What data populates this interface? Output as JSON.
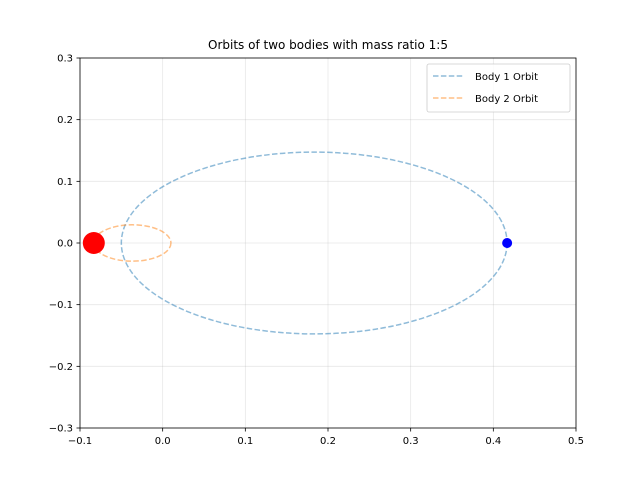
{
  "chart_data": {
    "type": "line",
    "title": "Orbits of two bodies with mass ratio 1:5",
    "xlabel": "",
    "ylabel": "",
    "xlim": [
      -0.1,
      0.5
    ],
    "ylim": [
      -0.3,
      0.3
    ],
    "xticks": [
      -0.1,
      0.0,
      0.1,
      0.2,
      0.3,
      0.4,
      0.5
    ],
    "yticks": [
      -0.3,
      -0.2,
      -0.1,
      0.0,
      0.1,
      0.2,
      0.3
    ],
    "xtick_labels": [
      "−0.1",
      "0.0",
      "0.1",
      "0.2",
      "0.3",
      "0.4",
      "0.5"
    ],
    "ytick_labels": [
      "−0.3",
      "−0.2",
      "−0.1",
      "0.0",
      "0.1",
      "0.2",
      "0.3"
    ],
    "grid": true,
    "legend_position": "top-right",
    "series": [
      {
        "name": "Body 1 Orbit",
        "kind": "ellipse",
        "center": [
          0.1833,
          0.0
        ],
        "semi_axes": [
          0.2333,
          0.1474
        ],
        "color": "#1f77b4",
        "style": "dashed",
        "marker": {
          "x": 0.4167,
          "y": 0.0,
          "color": "#0000ff"
        }
      },
      {
        "name": "Body 2 Orbit",
        "kind": "ellipse",
        "center": [
          -0.0367,
          0.0
        ],
        "semi_axes": [
          0.0467,
          0.0295
        ],
        "color": "#ff7f0e",
        "style": "dashed",
        "marker": {
          "x": -0.0833,
          "y": 0.0,
          "color": "#ff0000"
        }
      }
    ]
  }
}
